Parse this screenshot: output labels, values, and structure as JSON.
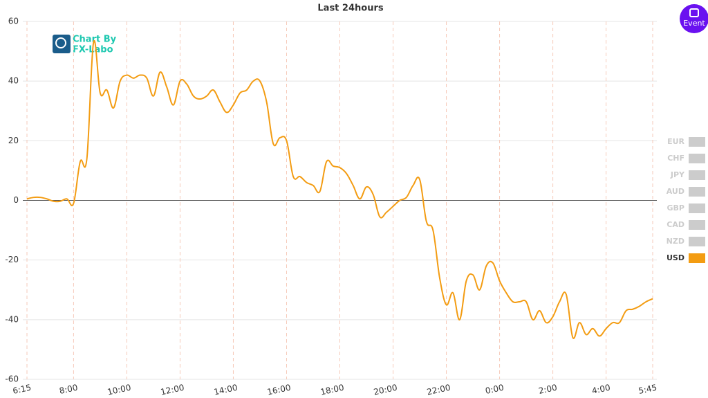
{
  "chart_data": {
    "type": "line",
    "title": "Last 24hours",
    "x": [
      "6:15",
      "6:30",
      "6:45",
      "7:00",
      "7:15",
      "7:30",
      "7:45",
      "8:00",
      "8:15",
      "8:30",
      "8:45",
      "9:00",
      "9:15",
      "9:30",
      "9:45",
      "10:00",
      "10:15",
      "10:30",
      "10:45",
      "11:00",
      "11:15",
      "11:30",
      "11:45",
      "12:00",
      "12:15",
      "12:30",
      "12:45",
      "13:00",
      "13:15",
      "13:30",
      "13:45",
      "14:00",
      "14:15",
      "14:30",
      "14:45",
      "15:00",
      "15:15",
      "15:30",
      "15:45",
      "16:00",
      "16:15",
      "16:30",
      "16:45",
      "17:00",
      "17:15",
      "17:30",
      "17:45",
      "18:00",
      "18:15",
      "18:30",
      "18:45",
      "19:00",
      "19:15",
      "19:30",
      "19:45",
      "20:00",
      "20:15",
      "20:30",
      "20:45",
      "21:00",
      "21:15",
      "21:30",
      "21:45",
      "22:00",
      "22:15",
      "22:30",
      "22:45",
      "23:00",
      "23:15",
      "23:30",
      "23:45",
      "0:00",
      "0:15",
      "0:30",
      "0:45",
      "1:00",
      "1:15",
      "1:30",
      "1:45",
      "2:00",
      "2:15",
      "2:30",
      "2:45",
      "3:00",
      "3:15",
      "3:30",
      "3:45",
      "4:00",
      "4:15",
      "4:30",
      "4:45",
      "5:00",
      "5:15",
      "5:30",
      "5:45"
    ],
    "series": [
      {
        "name": "USD",
        "color": "#f39c12",
        "values": [
          0.5,
          1,
          1,
          0.5,
          -0.3,
          -0.3,
          0.5,
          -1,
          13,
          14,
          53,
          36,
          37,
          31,
          40,
          42,
          41,
          42,
          41,
          35,
          43,
          38,
          32,
          40,
          39,
          35,
          34,
          35,
          37,
          33,
          29.5,
          32,
          36,
          37,
          40,
          40,
          33,
          19,
          21,
          20,
          8,
          8,
          6,
          5,
          3,
          13,
          11.5,
          11,
          9,
          5,
          0.5,
          4.5,
          2,
          -5.5,
          -4,
          -2,
          0,
          1,
          5,
          7,
          -7,
          -10,
          -26,
          -35,
          -31,
          -40,
          -27,
          -25,
          -30,
          -22,
          -21,
          -27,
          -31,
          -34,
          -34,
          -34,
          -40,
          -37,
          -41,
          -39,
          -34,
          -31.5,
          -46,
          -41,
          -45,
          -43,
          -45.5,
          -43,
          -41,
          -41,
          -37,
          -36.5,
          -35.5,
          -34,
          -33
        ]
      }
    ],
    "inactive_series": [
      {
        "name": "EUR",
        "color": "#cccccc"
      },
      {
        "name": "CHF",
        "color": "#cccccc"
      },
      {
        "name": "JPY",
        "color": "#cccccc"
      },
      {
        "name": "AUD",
        "color": "#cccccc"
      },
      {
        "name": "GBP",
        "color": "#cccccc"
      },
      {
        "name": "CAD",
        "color": "#cccccc"
      },
      {
        "name": "NZD",
        "color": "#cccccc"
      }
    ],
    "xlim": [
      "6:15",
      "5:45"
    ],
    "xticks": [
      "6:15",
      "8:00",
      "10:00",
      "12:00",
      "14:00",
      "16:00",
      "18:00",
      "20:00",
      "22:00",
      "0:00",
      "2:00",
      "4:00",
      "5:45"
    ],
    "ylim": [
      -60,
      60
    ],
    "yticks": [
      -60,
      -40,
      -20,
      0,
      20,
      40,
      60
    ],
    "grid": true,
    "logo": [
      "Chart By",
      "FX-Labo"
    ],
    "button": "Event"
  }
}
